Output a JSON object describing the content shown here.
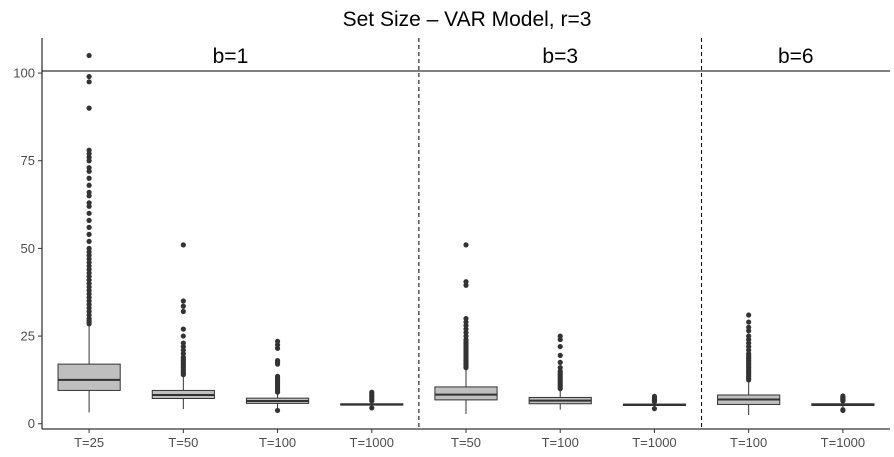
{
  "chart_data": {
    "type": "box",
    "title": "Set Size – VAR Model, r=3",
    "xlabel": "",
    "ylabel": "",
    "ylim": [
      -1.5,
      110
    ],
    "yticks": [
      0,
      25,
      50,
      75,
      100
    ],
    "grid": false,
    "panels": [
      {
        "label": "b=1",
        "categories": [
          "T=25",
          "T=50",
          "T=100",
          "T=1000"
        ],
        "boxes": [
          {
            "min": 3.2,
            "q1": 9.5,
            "median": 12.5,
            "q3": 17,
            "max": 28,
            "outliers": [
              28.5,
              29,
              29.5,
              30,
              31,
              32,
              33,
              34,
              35,
              36,
              37,
              38,
              39,
              40,
              41,
              42,
              43,
              44,
              45,
              46,
              47,
              48,
              49,
              50,
              52,
              54,
              56,
              58,
              60,
              62,
              63,
              65,
              66,
              68,
              70,
              72,
              73,
              75,
              76,
              77,
              78,
              90,
              97.5,
              99,
              105
            ]
          },
          {
            "min": 4.2,
            "q1": 7.2,
            "median": 8.2,
            "q3": 9.5,
            "max": 13.5,
            "outliers": [
              14,
              14.5,
              15,
              15.5,
              16,
              16.5,
              17,
              17.5,
              18,
              18.5,
              19,
              20,
              21,
              22,
              23,
              25,
              27,
              32,
              33.5,
              35,
              51
            ]
          },
          {
            "min": 4.2,
            "q1": 5.8,
            "median": 6.5,
            "q3": 7.3,
            "max": 8.6,
            "outliers": [
              3.8,
              9,
              9.5,
              10,
              10.5,
              11,
              11.5,
              12,
              12.5,
              13,
              13.5,
              17,
              17.5,
              18,
              21.5,
              22.5,
              23.5
            ]
          },
          {
            "min": 4.8,
            "q1": 5.3,
            "median": 5.5,
            "q3": 5.7,
            "max": 6.2,
            "outliers": [
              4.5,
              6.5,
              7,
              7.5,
              8,
              8.5,
              9
            ]
          }
        ]
      },
      {
        "label": "b=3",
        "categories": [
          "T=50",
          "T=100",
          "T=1000"
        ],
        "boxes": [
          {
            "min": 2.8,
            "q1": 6.8,
            "median": 8.3,
            "q3": 10.5,
            "max": 15.5,
            "outliers": [
              16,
              16.5,
              17,
              17.5,
              18,
              18.5,
              19,
              19.5,
              20,
              20.5,
              21,
              21.5,
              22,
              22.5,
              23,
              23.5,
              24,
              25,
              26,
              27,
              28,
              29,
              30,
              39.5,
              40.5,
              51
            ]
          },
          {
            "min": 4,
            "q1": 5.7,
            "median": 6.6,
            "q3": 7.5,
            "max": 9.8,
            "outliers": [
              10,
              10.5,
              11,
              11.5,
              12,
              12.5,
              13,
              13.5,
              14,
              14.5,
              15,
              16,
              17.5,
              19.5,
              22,
              24,
              25
            ]
          },
          {
            "min": 4.6,
            "q1": 5.2,
            "median": 5.4,
            "q3": 5.6,
            "max": 6,
            "outliers": [
              4.3,
              6.3,
              6.7,
              7,
              7.4,
              7.8
            ]
          }
        ]
      },
      {
        "label": "b=6",
        "categories": [
          "T=100",
          "T=1000"
        ],
        "boxes": [
          {
            "min": 2.5,
            "q1": 5.5,
            "median": 6.9,
            "q3": 8.2,
            "max": 12,
            "outliers": [
              12.5,
              13,
              13.5,
              14,
              14.5,
              15,
              15.5,
              16,
              16.5,
              17,
              17.5,
              18,
              18.5,
              19,
              19.5,
              20,
              21,
              22,
              23,
              24,
              25,
              26.5,
              27.5,
              29,
              31
            ]
          },
          {
            "min": 4.4,
            "q1": 5.2,
            "median": 5.45,
            "q3": 5.7,
            "max": 6.3,
            "outliers": [
              3.8,
              4,
              6.5,
              6.8,
              7,
              7.3,
              7.6,
              7.9
            ]
          }
        ]
      }
    ]
  }
}
